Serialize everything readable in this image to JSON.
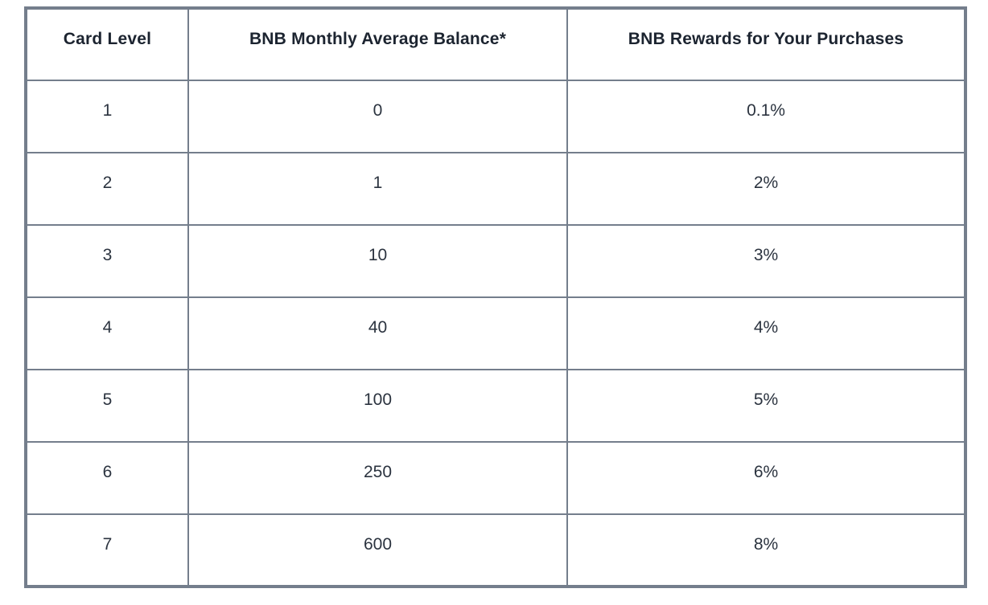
{
  "table": {
    "columns": [
      "Card Level",
      "BNB Monthly Average Balance*",
      "BNB Rewards for Your Purchases"
    ],
    "rows": [
      [
        "1",
        "0",
        "0.1%"
      ],
      [
        "2",
        "1",
        "2%"
      ],
      [
        "3",
        "10",
        "3%"
      ],
      [
        "4",
        "40",
        "4%"
      ],
      [
        "5",
        "100",
        "5%"
      ],
      [
        "6",
        "250",
        "6%"
      ],
      [
        "7",
        "600",
        "8%"
      ]
    ]
  },
  "colors": {
    "border": "#747e8c",
    "header_text": "#1c2430",
    "body_text": "#2b333f",
    "background": "#ffffff"
  },
  "chart_data": {
    "type": "table",
    "title": "",
    "columns": [
      "Card Level",
      "BNB Monthly Average Balance*",
      "BNB Rewards for Your Purchases"
    ],
    "categories": [
      "1",
      "2",
      "3",
      "4",
      "5",
      "6",
      "7"
    ],
    "series": [
      {
        "name": "BNB Monthly Average Balance*",
        "values": [
          0,
          1,
          10,
          40,
          100,
          250,
          600
        ]
      },
      {
        "name": "BNB Rewards for Your Purchases (%)",
        "values": [
          0.1,
          2,
          3,
          4,
          5,
          6,
          8
        ]
      }
    ],
    "layout": {
      "grid": "full-borders",
      "header_row": true,
      "alignment": "center"
    }
  }
}
